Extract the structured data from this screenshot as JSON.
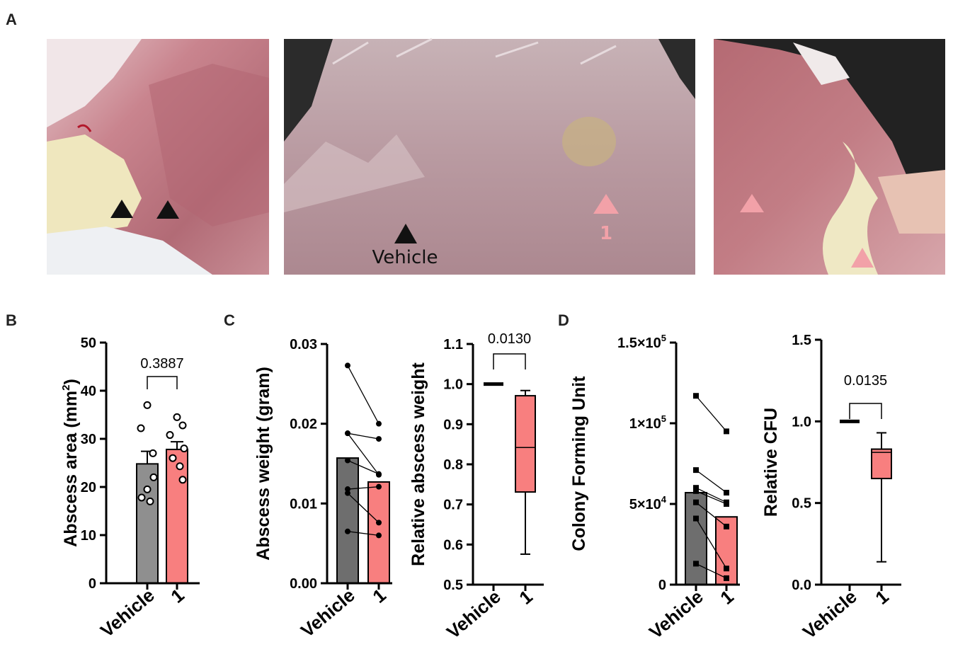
{
  "panel_letters": {
    "a": "A",
    "b": "B",
    "c": "C",
    "d": "D"
  },
  "photos": {
    "vehicle_label": "Vehicle",
    "compound_label": "1"
  },
  "colors": {
    "vehicle": "#8f8f8f",
    "vehicle_dark": "#6e6e6e",
    "compound": "#f87f7f",
    "compound_marker": "#f2a1a8",
    "vehicle_marker": "#111111"
  },
  "chart_data": [
    {
      "id": "B",
      "type": "bar",
      "ylabel": "Abscess area",
      "ylabel_unit": "(mm",
      "ylabel_sup": "2",
      "ylabel_close": ")",
      "ylim": [
        0,
        50
      ],
      "yticks": [
        "0",
        "10",
        "20",
        "30",
        "40",
        "50"
      ],
      "yticks_values": [
        0,
        10,
        20,
        30,
        40,
        50
      ],
      "categories": [
        "Vehicle",
        "1"
      ],
      "values": [
        24.8,
        27.8
      ],
      "sem": [
        2.6,
        1.6
      ],
      "points": [
        [
          37.0,
          32.2,
          27.0,
          22.0,
          19.5,
          17.8,
          17.0
        ],
        [
          34.5,
          32.8,
          30.8,
          28.0,
          26.0,
          24.3,
          21.5
        ]
      ],
      "pvalue": "0.3887"
    },
    {
      "id": "C-left",
      "type": "bar",
      "paired": true,
      "ylabel": "Abscess weight (gram)",
      "ylim": [
        0,
        0.03
      ],
      "yticks": [
        "0.00",
        "0.01",
        "0.02",
        "0.03"
      ],
      "yticks_values": [
        0,
        0.01,
        0.02,
        0.03
      ],
      "categories": [
        "Vehicle",
        "1"
      ],
      "values": [
        0.0157,
        0.0127
      ],
      "pairs": [
        [
          0.0273,
          0.02
        ],
        [
          0.0188,
          0.0181
        ],
        [
          0.0188,
          0.0136
        ],
        [
          0.0154,
          0.0137
        ],
        [
          0.0118,
          0.0121
        ],
        [
          0.0113,
          0.0076
        ],
        [
          0.0065,
          0.006
        ]
      ]
    },
    {
      "id": "C-right",
      "type": "box",
      "ylabel": "Relative abscess weight",
      "ylim": [
        0.5,
        1.1
      ],
      "yticks": [
        "0.5",
        "0.6",
        "0.7",
        "0.8",
        "0.9",
        "1.0",
        "1.1"
      ],
      "yticks_values": [
        0.5,
        0.6,
        0.7,
        0.8,
        0.9,
        1.0,
        1.1
      ],
      "categories": [
        "Vehicle",
        "1"
      ],
      "vehicle_value": 1.0,
      "box": {
        "min": 0.576,
        "q1": 0.731,
        "median": 0.842,
        "q3": 0.971,
        "max": 0.984
      },
      "pvalue": "0.0130"
    },
    {
      "id": "D-left",
      "type": "bar",
      "paired": true,
      "ylabel": "Colony Forming Unit",
      "ylim": [
        0,
        150000
      ],
      "yticks": [
        {
          "base": "0",
          "exp": ""
        },
        {
          "base": "5×10",
          "exp": "4"
        },
        {
          "base": "1×10",
          "exp": "5"
        },
        {
          "base": "1.5×10",
          "exp": "5"
        }
      ],
      "yticks_values": [
        0,
        50000,
        100000,
        150000
      ],
      "categories": [
        "Vehicle",
        "1"
      ],
      "values": [
        57000,
        42000
      ],
      "pairs": [
        [
          117000,
          95000
        ],
        [
          71000,
          57000
        ],
        [
          60000,
          51000
        ],
        [
          58000,
          50000
        ],
        [
          51000,
          36000
        ],
        [
          41000,
          10000
        ],
        [
          13000,
          4000
        ]
      ]
    },
    {
      "id": "D-right",
      "type": "box",
      "ylabel": "Relative CFU",
      "ylim": [
        0,
        1.5
      ],
      "yticks": [
        "0.0",
        "0.5",
        "1.0",
        "1.5"
      ],
      "yticks_values": [
        0,
        0.5,
        1.0,
        1.5
      ],
      "categories": [
        "Vehicle",
        "1"
      ],
      "vehicle_value": 1.0,
      "box": {
        "min": 0.14,
        "q1": 0.65,
        "median": 0.81,
        "q3": 0.83,
        "max": 0.93
      },
      "pvalue": "0.0135"
    }
  ]
}
